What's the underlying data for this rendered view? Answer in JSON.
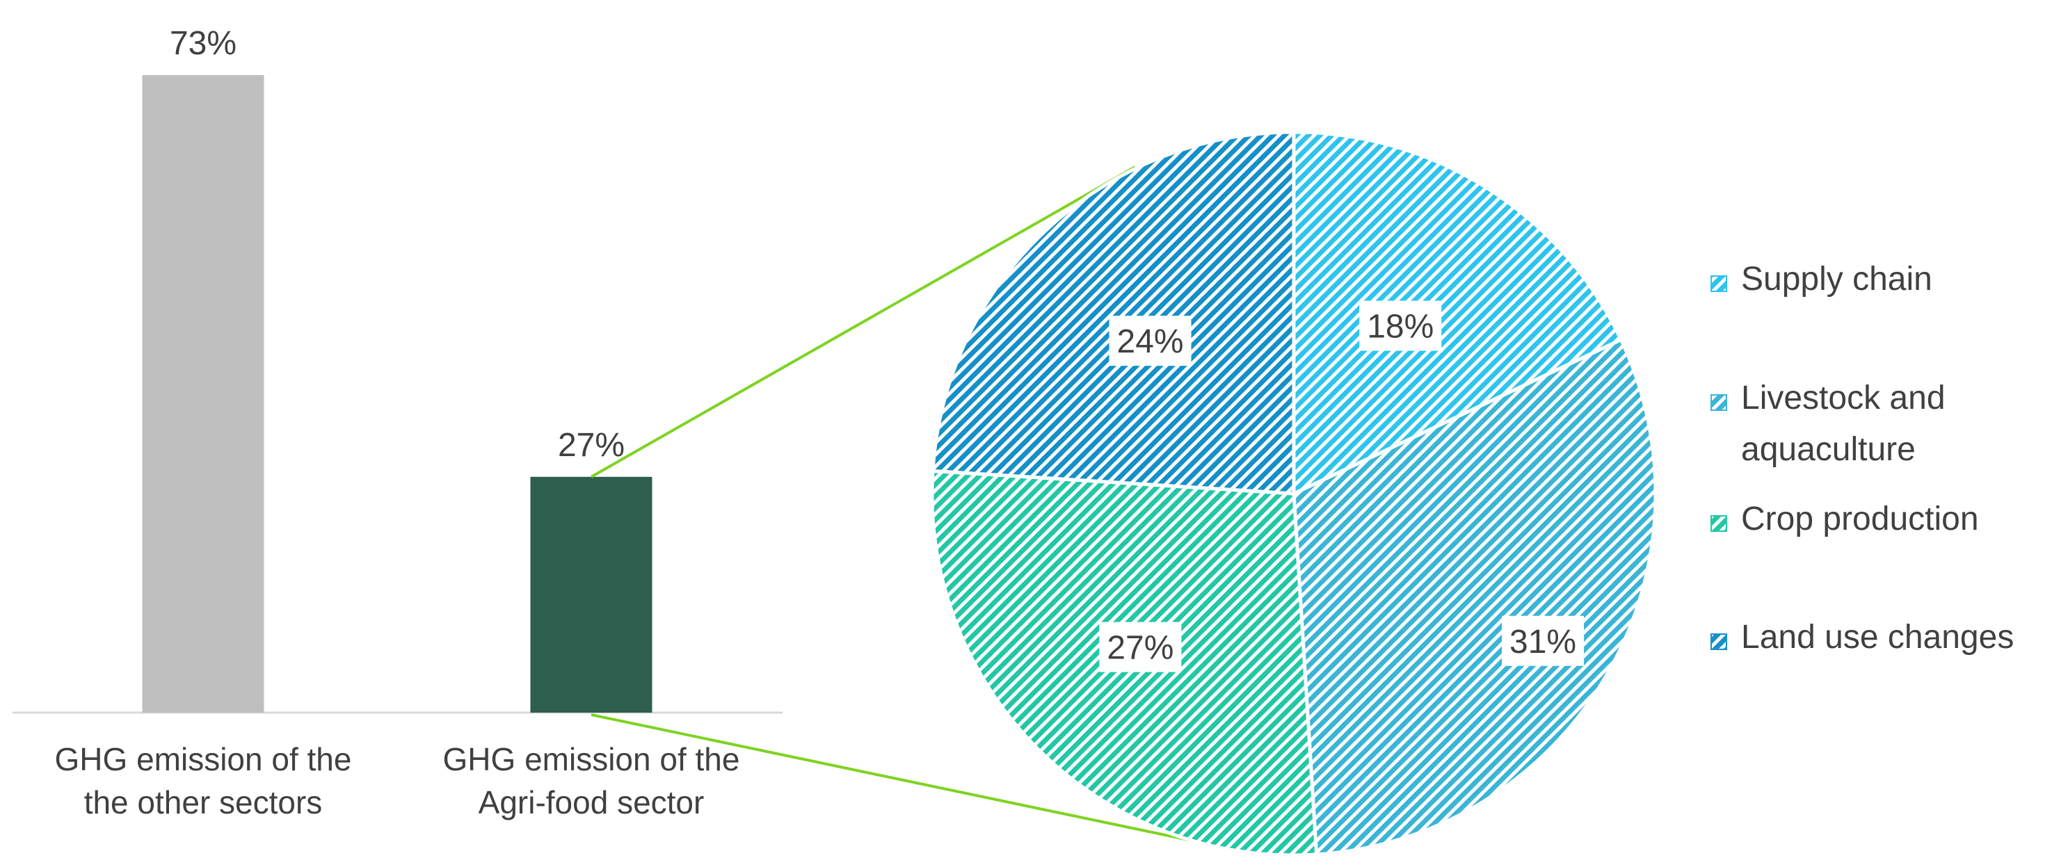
{
  "chart_data": [
    {
      "type": "bar",
      "categories": [
        [
          "GHG emission of the",
          "the other sectors"
        ],
        [
          "GHG emission of the",
          "Agri-food sector"
        ]
      ],
      "values": [
        73,
        27
      ],
      "value_labels": [
        "73%",
        "27%"
      ],
      "colors": [
        "#bfbfbf",
        "#2e5e4e"
      ],
      "ylim": [
        0,
        73
      ],
      "title": "",
      "xlabel": "",
      "ylabel": ""
    },
    {
      "type": "pie",
      "slices": [
        {
          "name": "Supply chain",
          "value": 18,
          "label": "18%",
          "color": "#2ec4ec"
        },
        {
          "name": "Livestock and aquaculture",
          "legend_lines": [
            "Livestock and",
            "aquaculture"
          ],
          "value": 31,
          "label": "31%",
          "color": "#3ab5d6"
        },
        {
          "name": "Crop production",
          "value": 27,
          "label": "27%",
          "color": "#22c7a6"
        },
        {
          "name": "Land use changes",
          "value": 24,
          "label": "24%",
          "color": "#1590c8"
        }
      ],
      "legend_position": "right",
      "fill_pattern": "diagonal-hatch"
    }
  ],
  "connector_color": "#7ed321"
}
